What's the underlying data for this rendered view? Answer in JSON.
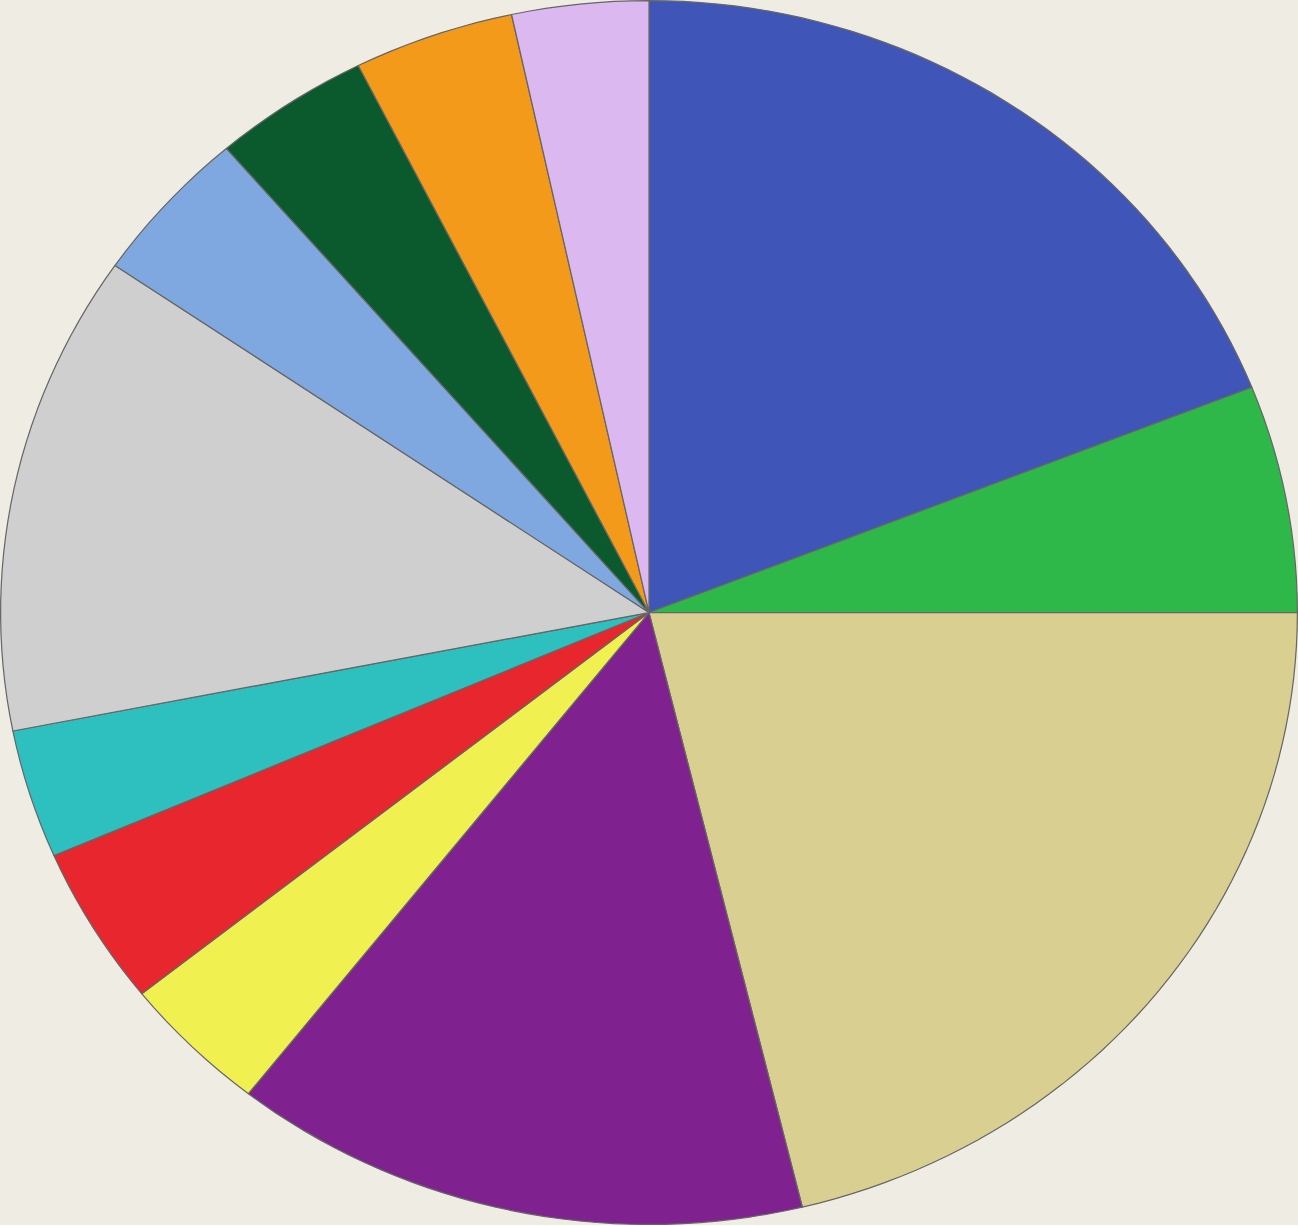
{
  "chart_data": {
    "type": "pie",
    "categories": [
      null,
      null,
      null,
      null,
      null,
      null,
      null,
      null,
      null,
      null,
      null,
      null
    ],
    "values": [
      19,
      6,
      21.2,
      14.4,
      3.7,
      4.2,
      3.4,
      12.7,
      4.1,
      3.9,
      4,
      3.4
    ],
    "colors": [
      "#3f56b8",
      "#2eb84a",
      "#d8cf90",
      "#7f2290",
      "#f0f050",
      "#e8262e",
      "#2ebfbf",
      "#cfcfcf",
      "#80a8e0",
      "#0b5a2e",
      "#f39a1a",
      "#dcb8f0"
    ]
  }
}
